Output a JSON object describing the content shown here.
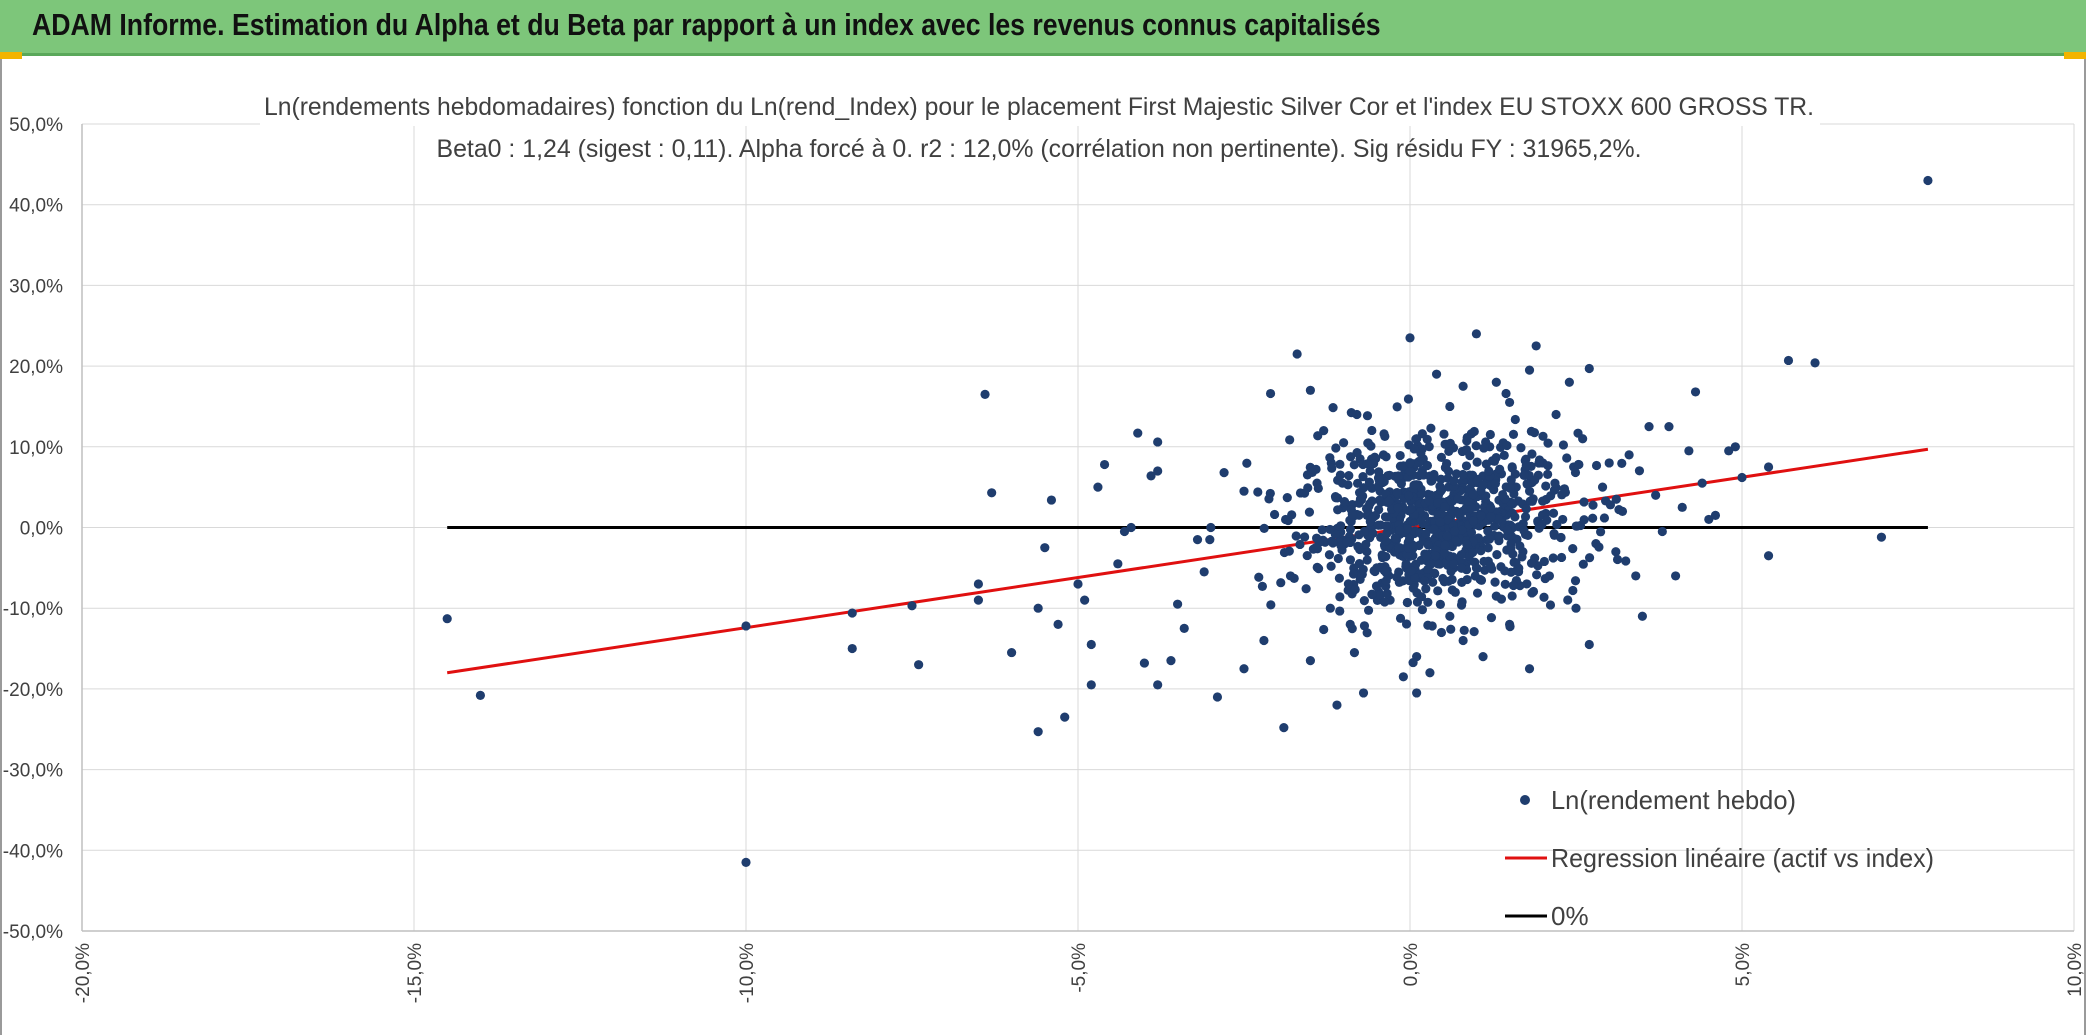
{
  "header": {
    "title": "ADAM Informe. Estimation du Alpha et du Beta par rapport à un index avec les revenus connus capitalisés",
    "background": "#7dc67a"
  },
  "chart_data": {
    "type": "scatter",
    "title": "Ln(rendements hebdomadaires) fonction du Ln(rend_Index) pour le placement First Majestic Silver Cor et l'index EU STOXX 600 GROSS TR.",
    "subtitle": "Beta0 : 1,24 (sigest : 0,11). Alpha forcé à 0. r2 : 12,0% (corrélation non pertinente). Sig résidu FY : 31965,2%.",
    "xlabel": "",
    "ylabel": "",
    "xlim": [
      -0.2,
      0.1
    ],
    "ylim": [
      -0.5,
      0.5
    ],
    "x_ticks": [
      "-20,0%",
      "-15,0%",
      "-10,0%",
      "-5,0%",
      "0,0%",
      "5,0%",
      "10,0%"
    ],
    "y_ticks": [
      "50,0%",
      "40,0%",
      "30,0%",
      "20,0%",
      "10,0%",
      "0,0%",
      "-10,0%",
      "-20,0%",
      "-30,0%",
      "-40,0%",
      "-50,0%"
    ],
    "grid": true,
    "legend_position": "bottom-right",
    "colors": {
      "points": "#1f3d6e",
      "regression": "#e01010",
      "zero": "#000000",
      "grid": "#d9d9d9"
    },
    "series": [
      {
        "name": "Ln(rendement hebdo)",
        "kind": "scatter",
        "points": [
          [
            -0.145,
            -0.113
          ],
          [
            -0.14,
            -0.208
          ],
          [
            -0.1,
            -0.122
          ],
          [
            -0.1,
            -0.415
          ],
          [
            -0.084,
            -0.106
          ],
          [
            -0.084,
            -0.15
          ],
          [
            -0.075,
            -0.097
          ],
          [
            -0.074,
            -0.17
          ],
          [
            -0.065,
            -0.07
          ],
          [
            -0.065,
            -0.09
          ],
          [
            -0.064,
            0.165
          ],
          [
            -0.063,
            0.043
          ],
          [
            -0.06,
            -0.155
          ],
          [
            -0.056,
            -0.1
          ],
          [
            -0.056,
            -0.253
          ],
          [
            -0.055,
            -0.025
          ],
          [
            -0.054,
            0.034
          ],
          [
            -0.053,
            -0.12
          ],
          [
            -0.052,
            -0.235
          ],
          [
            -0.05,
            -0.07
          ],
          [
            -0.049,
            -0.09
          ],
          [
            -0.048,
            -0.145
          ],
          [
            -0.048,
            -0.195
          ],
          [
            -0.046,
            0.078
          ],
          [
            -0.047,
            0.05
          ],
          [
            -0.044,
            -0.045
          ],
          [
            -0.043,
            -0.005
          ],
          [
            -0.042,
            0.0
          ],
          [
            -0.041,
            0.117
          ],
          [
            -0.04,
            -0.168
          ],
          [
            -0.039,
            0.064
          ],
          [
            -0.038,
            0.106
          ],
          [
            -0.038,
            0.07
          ],
          [
            -0.038,
            -0.195
          ],
          [
            -0.036,
            -0.165
          ],
          [
            -0.035,
            -0.095
          ],
          [
            -0.034,
            -0.125
          ],
          [
            -0.032,
            -0.015
          ],
          [
            -0.031,
            -0.055
          ],
          [
            -0.03,
            0.0
          ],
          [
            -0.029,
            -0.21
          ],
          [
            -0.028,
            0.068
          ],
          [
            -0.025,
            -0.175
          ],
          [
            -0.025,
            0.045
          ],
          [
            -0.022,
            -0.14
          ],
          [
            -0.021,
            0.166
          ],
          [
            -0.019,
            -0.248
          ],
          [
            -0.018,
            -0.06
          ],
          [
            -0.017,
            0.215
          ],
          [
            -0.015,
            0.17
          ],
          [
            -0.015,
            -0.165
          ],
          [
            -0.014,
            0.055
          ],
          [
            -0.013,
            0.12
          ],
          [
            -0.012,
            -0.1
          ],
          [
            -0.011,
            -0.22
          ],
          [
            -0.01,
            0.105
          ],
          [
            -0.009,
            -0.12
          ],
          [
            -0.008,
            0.14
          ],
          [
            -0.007,
            -0.205
          ],
          [
            -0.006,
            0.07
          ],
          [
            -0.005,
            -0.05
          ],
          [
            -0.004,
            0.09
          ],
          [
            -0.003,
            -0.09
          ],
          [
            -0.002,
            0.03
          ],
          [
            -0.001,
            -0.185
          ],
          [
            0.0,
            0.235
          ],
          [
            0.0,
            -0.01
          ],
          [
            0.001,
            0.11
          ],
          [
            0.001,
            -0.16
          ],
          [
            0.001,
            -0.205
          ],
          [
            0.002,
            0.085
          ],
          [
            0.002,
            -0.06
          ],
          [
            0.003,
            -0.18
          ],
          [
            0.004,
            0.19
          ],
          [
            0.004,
            0.04
          ],
          [
            0.005,
            -0.03
          ],
          [
            0.006,
            0.15
          ],
          [
            0.006,
            -0.11
          ],
          [
            0.007,
            0.02
          ],
          [
            0.008,
            0.175
          ],
          [
            0.008,
            -0.14
          ],
          [
            0.009,
            0.065
          ],
          [
            0.01,
            -0.05
          ],
          [
            0.01,
            0.24
          ],
          [
            0.011,
            -0.16
          ],
          [
            0.012,
            0.1
          ],
          [
            0.013,
            0.18
          ],
          [
            0.013,
            -0.085
          ],
          [
            0.014,
            0.03
          ],
          [
            0.015,
            0.155
          ],
          [
            0.015,
            -0.12
          ],
          [
            0.016,
            0.05
          ],
          [
            0.017,
            -0.03
          ],
          [
            0.018,
            0.195
          ],
          [
            0.018,
            -0.175
          ],
          [
            0.019,
            0.225
          ],
          [
            0.02,
            0.08
          ],
          [
            0.021,
            -0.06
          ],
          [
            0.022,
            0.14
          ],
          [
            0.023,
            0.01
          ],
          [
            0.024,
            0.18
          ],
          [
            0.025,
            -0.1
          ],
          [
            0.026,
            0.11
          ],
          [
            0.027,
            0.197
          ],
          [
            0.027,
            -0.145
          ],
          [
            0.028,
            -0.02
          ],
          [
            0.029,
            0.05
          ],
          [
            0.03,
            0.08
          ],
          [
            0.031,
            -0.03
          ],
          [
            0.032,
            0.02
          ],
          [
            0.033,
            0.09
          ],
          [
            0.034,
            -0.06
          ],
          [
            0.035,
            -0.11
          ],
          [
            0.036,
            0.125
          ],
          [
            0.037,
            0.04
          ],
          [
            0.038,
            -0.005
          ],
          [
            0.039,
            0.125
          ],
          [
            0.04,
            -0.06
          ],
          [
            0.041,
            0.025
          ],
          [
            0.042,
            0.095
          ],
          [
            0.043,
            0.168
          ],
          [
            0.044,
            0.055
          ],
          [
            0.045,
            0.01
          ],
          [
            0.046,
            0.015
          ],
          [
            0.048,
            0.095
          ],
          [
            0.049,
            0.1
          ],
          [
            0.05,
            0.062
          ],
          [
            0.054,
            0.075
          ],
          [
            0.054,
            -0.035
          ],
          [
            0.057,
            0.207
          ],
          [
            0.061,
            0.204
          ],
          [
            0.071,
            -0.012
          ],
          [
            0.078,
            0.43
          ]
        ]
      },
      {
        "name": "Regression linéaire (actif vs index)",
        "kind": "line",
        "x": [
          -0.145,
          0.078
        ],
        "y": [
          -0.18,
          0.097
        ]
      },
      {
        "name": "0%",
        "kind": "line",
        "x": [
          -0.145,
          0.078
        ],
        "y": [
          0,
          0
        ]
      }
    ]
  }
}
